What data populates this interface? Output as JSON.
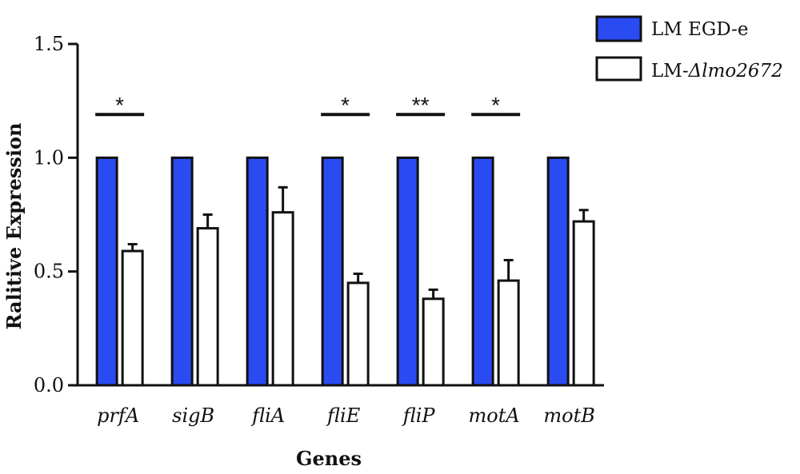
{
  "chart_data": {
    "type": "bar",
    "categories": [
      "prfA",
      "sigB",
      "fliA",
      "fliE",
      "fliP",
      "motA",
      "motB"
    ],
    "series": [
      {
        "name": "LM EGD-e",
        "values": [
          1.0,
          1.0,
          1.0,
          1.0,
          1.0,
          1.0,
          1.0
        ],
        "errors": [
          0,
          0,
          0,
          0,
          0,
          0,
          0
        ],
        "color": "#2b4bf2"
      },
      {
        "name": "LM-Δlmo2672",
        "name_prefix": "LM-",
        "name_italic": "Δlmo2672",
        "values": [
          0.59,
          0.69,
          0.76,
          0.45,
          0.38,
          0.46,
          0.72
        ],
        "errors": [
          0.03,
          0.06,
          0.11,
          0.04,
          0.04,
          0.09,
          0.05
        ],
        "color": "#ffffff"
      }
    ],
    "significance": [
      {
        "category": "prfA",
        "label": "*"
      },
      {
        "category": "fliE",
        "label": "*"
      },
      {
        "category": "fliP",
        "label": "**"
      },
      {
        "category": "motA",
        "label": "*"
      }
    ],
    "xlabel": "Genes",
    "ylabel": "Ralitive Expression",
    "ylim": [
      0,
      1.5
    ],
    "yticks": [
      "0.0",
      "0.5",
      "1.0",
      "1.5"
    ],
    "grid": false,
    "legend_position": "top-right"
  }
}
